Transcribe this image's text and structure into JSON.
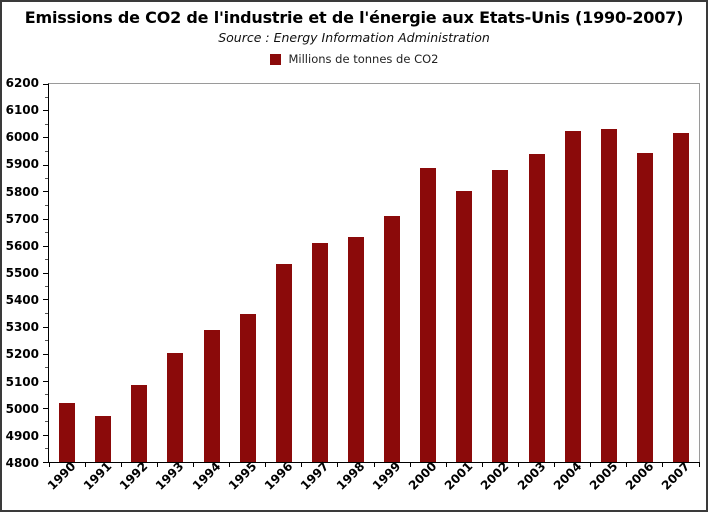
{
  "chart_data": {
    "type": "bar",
    "title": "Emissions de CO2 de l'industrie et de l'énergie aux Etats-Unis (1990-2007)",
    "subtitle": "Source : Energy Information Administration",
    "legend": "Millions de tonnes de CO2",
    "legend_position": "top",
    "categories": [
      "1990",
      "1991",
      "1992",
      "1993",
      "1994",
      "1995",
      "1996",
      "1997",
      "1998",
      "1999",
      "2000",
      "2001",
      "2002",
      "2003",
      "2004",
      "2005",
      "2006",
      "2007"
    ],
    "values": [
      5020,
      4970,
      5085,
      5205,
      5290,
      5350,
      5535,
      5610,
      5635,
      5710,
      5890,
      5805,
      5880,
      5940,
      6025,
      6035,
      5945,
      6020
    ],
    "xlabel": "",
    "ylabel": "",
    "ylim": [
      4800,
      6200
    ],
    "ytick_step": 100,
    "ytick_minor_step": 50,
    "grid": false,
    "bar_color": "#8b0a0a",
    "axis_color": "#000000",
    "frame_color": "#9a9a9a",
    "x_tick_labels_rotation_deg": -45
  }
}
